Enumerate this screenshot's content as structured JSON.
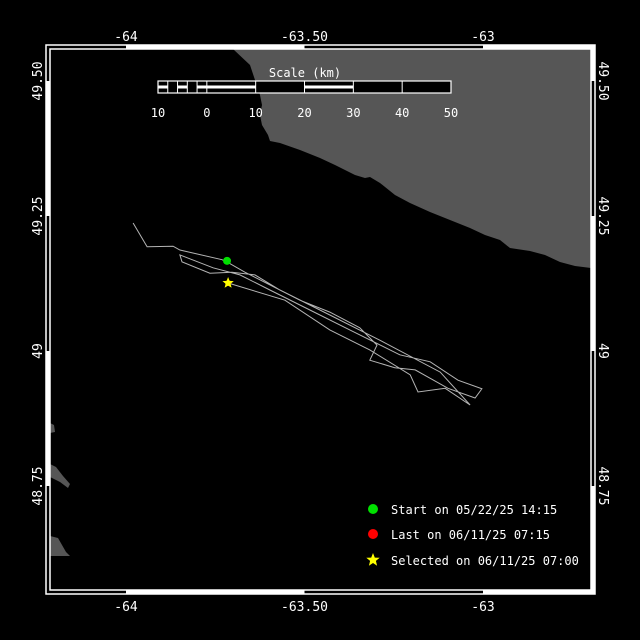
{
  "map": {
    "colors": {
      "ocean": "#000000",
      "land": "#565656",
      "track": "#b4b4b4",
      "start": "#00e000",
      "last": "#ff0000",
      "selected": "#ffff00",
      "frame": "#ffffff"
    },
    "lon_range": [
      -64.22,
      -62.96
    ],
    "lat_range": [
      48.6,
      49.57
    ],
    "x_ticks": [
      {
        "value": -64,
        "label": "-64"
      },
      {
        "value": -63.5,
        "label": "-63.50"
      },
      {
        "value": -63,
        "label": "-63"
      }
    ],
    "y_ticks": [
      {
        "value": 49.5,
        "label": "49.50"
      },
      {
        "value": 49.25,
        "label": "49.25"
      },
      {
        "value": 49,
        "label": "49"
      },
      {
        "value": 48.75,
        "label": "48.75"
      }
    ],
    "track": [
      [
        -63.98,
        49.237
      ],
      [
        -63.941,
        49.193
      ],
      [
        -63.868,
        49.194
      ],
      [
        -63.849,
        49.187
      ],
      [
        -63.731,
        49.169
      ],
      [
        -63.717,
        49.165
      ],
      [
        -63.667,
        49.146
      ],
      [
        -63.513,
        49.094
      ],
      [
        -63.429,
        49.072
      ],
      [
        -63.345,
        49.043
      ],
      [
        -63.297,
        49.011
      ],
      [
        -63.317,
        48.983
      ],
      [
        -63.247,
        48.969
      ],
      [
        -63.19,
        48.965
      ],
      [
        -63.098,
        48.931
      ],
      [
        -63.022,
        48.913
      ],
      [
        -63.003,
        48.93
      ],
      [
        -63.07,
        48.946
      ],
      [
        -63.148,
        48.98
      ],
      [
        -63.233,
        48.993
      ],
      [
        -63.373,
        49.039
      ],
      [
        -63.485,
        49.076
      ],
      [
        -63.597,
        49.113
      ],
      [
        -63.681,
        49.141
      ],
      [
        -63.756,
        49.154
      ],
      [
        -63.849,
        49.178
      ],
      [
        -63.843,
        49.165
      ],
      [
        -63.765,
        49.144
      ],
      [
        -63.703,
        49.146
      ],
      [
        -63.639,
        49.141
      ],
      [
        -63.569,
        49.113
      ],
      [
        -63.457,
        49.076
      ],
      [
        -63.289,
        49.02
      ],
      [
        -63.12,
        48.961
      ],
      [
        -63.036,
        48.9
      ],
      [
        -63.106,
        48.931
      ],
      [
        -63.182,
        48.924
      ],
      [
        -63.204,
        48.956
      ],
      [
        -63.317,
        49.002
      ],
      [
        -63.429,
        49.039
      ],
      [
        -63.555,
        49.094
      ],
      [
        -63.714,
        49.126
      ]
    ],
    "start_point": [
      -63.717,
      49.167
    ],
    "last_point": [
      -63.714,
      49.126
    ],
    "selected_point": [
      -63.714,
      49.126
    ]
  },
  "scale": {
    "title": "Scale (km)",
    "labels": [
      "10",
      "0",
      "10",
      "20",
      "30",
      "40",
      "50"
    ]
  },
  "legend": {
    "start": "Start on 05/22/25 14:15",
    "last": "Last on 06/11/25 07:15",
    "selected": "Selected on 06/11/25 07:00"
  }
}
